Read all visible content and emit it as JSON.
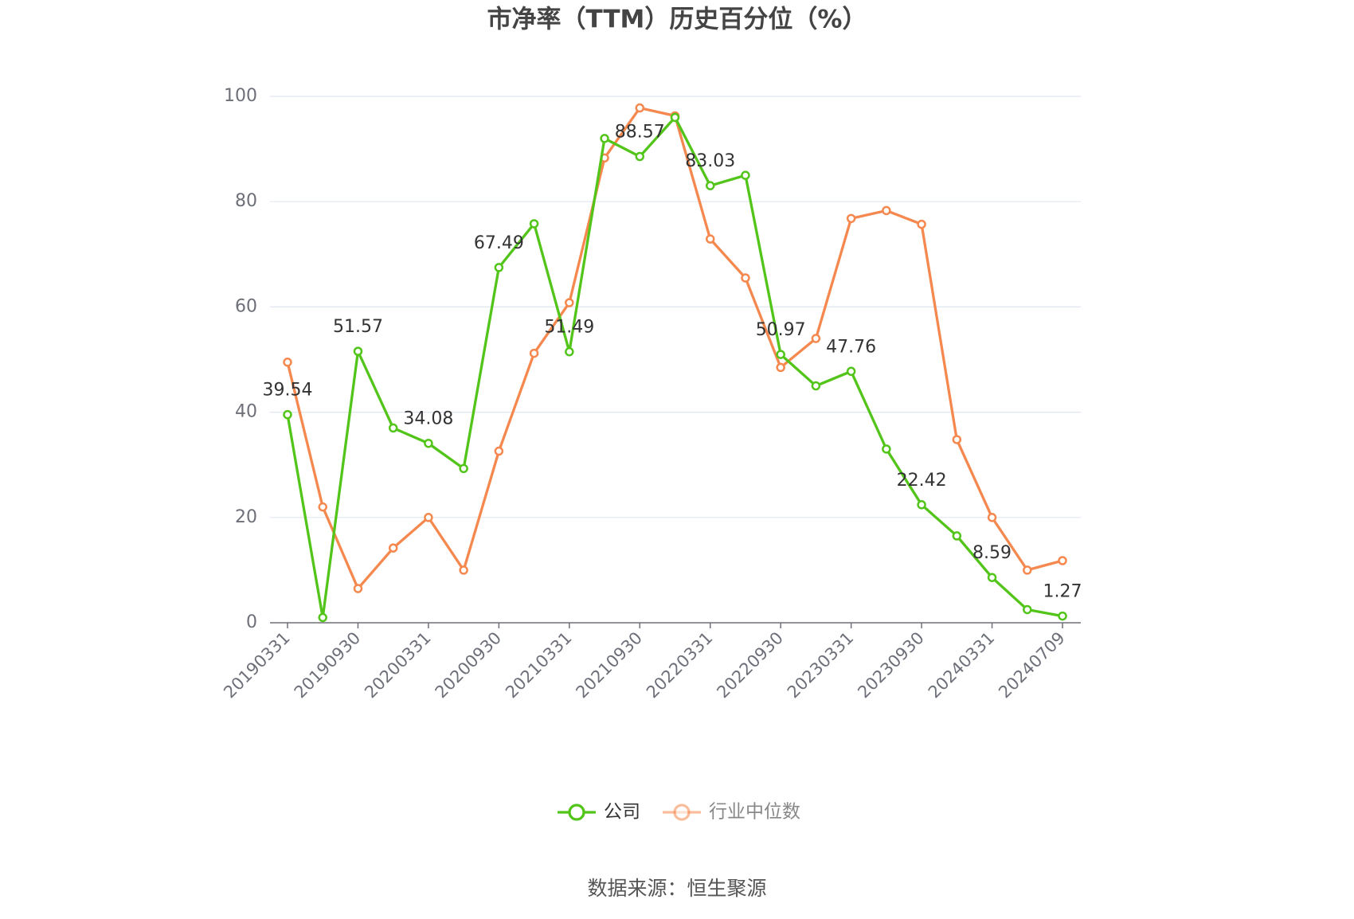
{
  "chart_data": {
    "type": "line",
    "title": "市净率（TTM）历史百分位（%）",
    "source": "数据来源：恒生聚源",
    "categories": [
      "20190331",
      null,
      "20190930",
      null,
      "20200331",
      null,
      "20200930",
      null,
      "20210331",
      null,
      "20210930",
      null,
      "20220331",
      null,
      "20220930",
      null,
      "20230331",
      null,
      "20230930",
      null,
      "20240331",
      null,
      "20240709"
    ],
    "series": [
      {
        "name": "公司",
        "color": "#52c41a",
        "data_labels": true,
        "values": [
          39.54,
          1,
          51.57,
          37,
          34.08,
          29.3,
          67.49,
          75.8,
          51.49,
          92,
          88.57,
          96,
          83.03,
          85,
          50.97,
          45,
          47.76,
          33,
          22.42,
          16.5,
          8.59,
          2.5,
          1.27
        ]
      },
      {
        "name": "行业中位数",
        "color": "#f5884e",
        "values": [
          49.5,
          22,
          6.5,
          14.2,
          20,
          10,
          32.6,
          51.2,
          60.8,
          88.3,
          97.8,
          96.3,
          72.9,
          65.5,
          48.5,
          54,
          76.8,
          78.3,
          75.7,
          34.8,
          20,
          10,
          11.8
        ]
      }
    ],
    "ylim": [
      0,
      100
    ],
    "yticks": [
      0,
      20,
      40,
      60,
      80,
      100
    ],
    "grid": true
  }
}
